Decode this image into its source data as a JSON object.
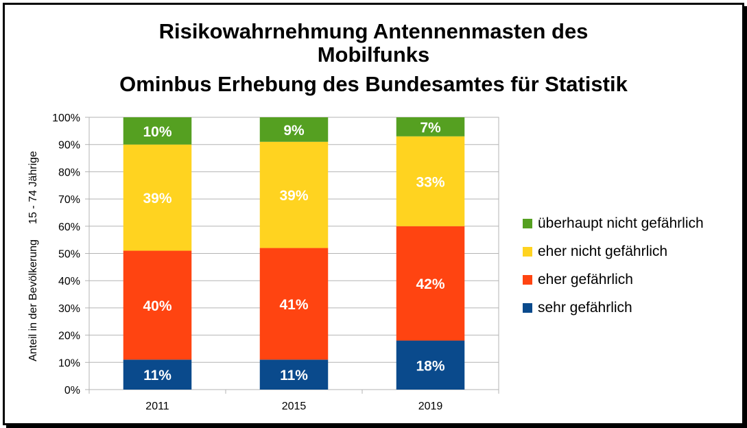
{
  "chart_data": {
    "type": "bar",
    "stacked": true,
    "title_lines": [
      "Risikowahrnehmung  Antennenmasten des",
      "Mobilfunks",
      "Ominbus Erhebung des Bundesamtes für Statistik"
    ],
    "ylabel": "Anteil in der Bevölkerung     15 - 74 Jährige",
    "xlabel": "",
    "ylim": [
      0,
      100
    ],
    "y_ticks": [
      "0%",
      "10%",
      "20%",
      "30%",
      "40%",
      "50%",
      "60%",
      "70%",
      "80%",
      "90%",
      "100%"
    ],
    "grid": true,
    "legend_position": "right",
    "categories": [
      "2011",
      "2015",
      "2019"
    ],
    "series": [
      {
        "name": "sehr gefährlich",
        "color": "#0a4a8c",
        "values": [
          11,
          11,
          18
        ],
        "labels": [
          "11%",
          "11%",
          "18%"
        ]
      },
      {
        "name": "eher gefährlich",
        "color": "#ff4411",
        "values": [
          40,
          41,
          42
        ],
        "labels": [
          "40%",
          "41%",
          "42%"
        ]
      },
      {
        "name": "eher nicht gefährlich",
        "color": "#ffd320",
        "values": [
          39,
          39,
          33
        ],
        "labels": [
          "39%",
          "39%",
          "33%"
        ]
      },
      {
        "name": "überhaupt nicht gefährlich",
        "color": "#55a021",
        "values": [
          10,
          9,
          7
        ],
        "labels": [
          "10%",
          "9%",
          "7%"
        ]
      }
    ]
  }
}
